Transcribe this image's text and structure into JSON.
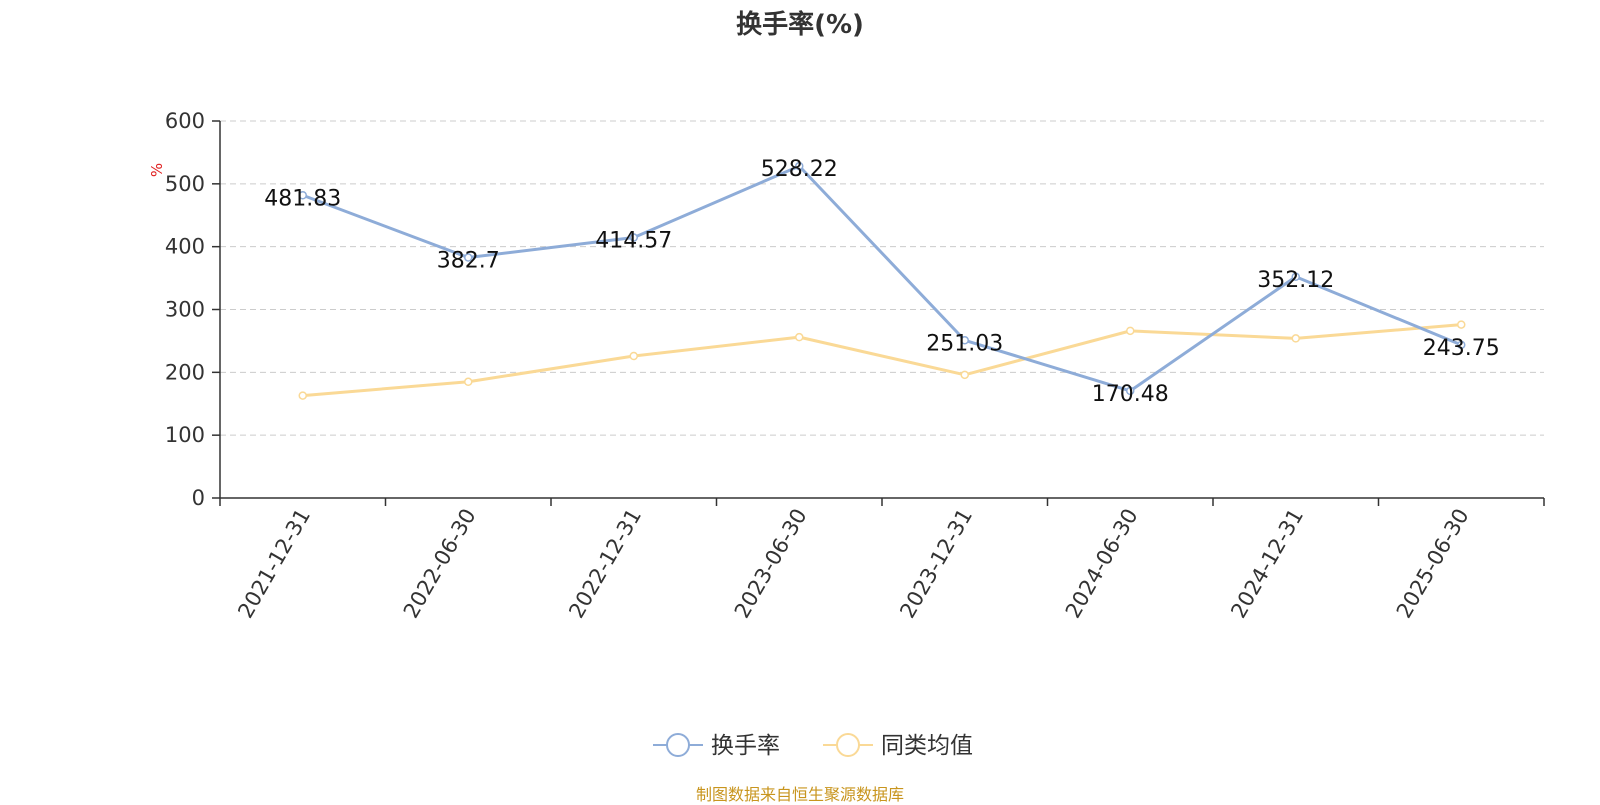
{
  "chart_data": {
    "type": "line",
    "title": "换手率(%)",
    "ylabel": "%",
    "xlabel": "",
    "ylim": [
      0,
      600
    ],
    "yticks": [
      0,
      100,
      200,
      300,
      400,
      500,
      600
    ],
    "categories": [
      "2021-12-31",
      "2022-06-30",
      "2022-12-31",
      "2023-06-30",
      "2023-12-31",
      "2024-06-30",
      "2024-12-31",
      "2025-06-30"
    ],
    "series": [
      {
        "name": "换手率",
        "color": "#8eacd8",
        "values": [
          481.83,
          382.7,
          414.57,
          528.22,
          251.03,
          170.48,
          352.12,
          243.75
        ],
        "data_labels": [
          "481.83",
          "382.7",
          "414.57",
          "528.22",
          "251.03",
          "170.48",
          "352.12",
          "243.75"
        ]
      },
      {
        "name": "同类均值",
        "color": "#fad996",
        "values": [
          163,
          185,
          226,
          256,
          196,
          266,
          254,
          276
        ]
      }
    ],
    "grid": "horizontal-dashed",
    "legend_position": "bottom-center"
  },
  "source_note": "制图数据来自恒生聚源数据库",
  "colors": {
    "ylabel": "#e02020",
    "source_note": "#c8951e",
    "axis": "#333333",
    "grid": "#cccccc"
  }
}
